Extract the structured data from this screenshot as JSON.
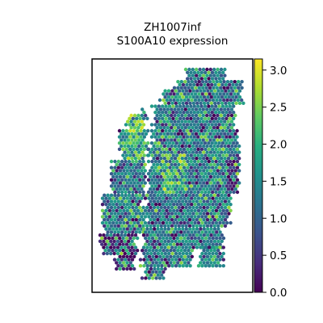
{
  "chart_data": {
    "type": "scatter",
    "title_line1": "ZH1007inf",
    "title_line2": "S100A10 expression",
    "xlabel": "",
    "ylabel": "",
    "colorbar": {
      "colormap": "viridis",
      "range": [
        0.0,
        3.15
      ],
      "ticks": [
        0.0,
        0.5,
        1.0,
        1.5,
        2.0,
        2.5,
        3.0
      ],
      "tick_labels": [
        "0.0",
        "0.5",
        "1.0",
        "1.5",
        "2.0",
        "2.5",
        "3.0"
      ]
    },
    "grid": false
  }
}
